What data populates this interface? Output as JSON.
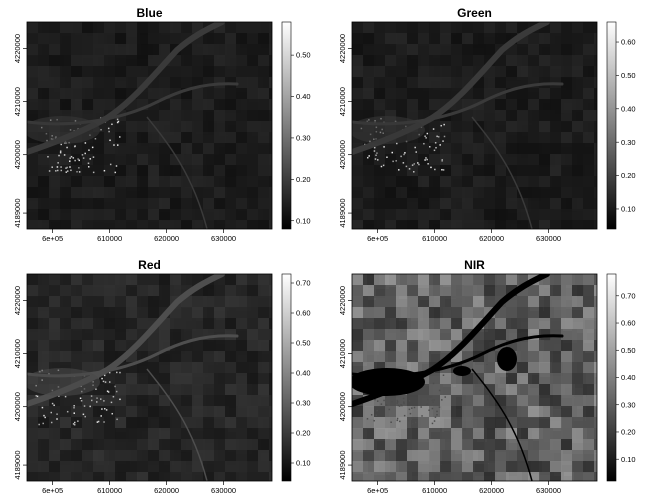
{
  "chart_data": [
    {
      "type": "heatmap",
      "title": "Blue",
      "xlabel": "",
      "ylabel": "",
      "x_ticks": [
        "6e+05",
        "610000",
        "620000",
        "630000"
      ],
      "x_tick_values": [
        600000,
        610000,
        620000,
        630000
      ],
      "xlim": [
        595500,
        638500
      ],
      "y_ticks": [
        "4189000",
        "4200000",
        "4210000",
        "4220000"
      ],
      "y_tick_values": [
        4189000,
        4200000,
        4210000,
        4220000
      ],
      "ylim": [
        4186000,
        4225000
      ],
      "colorbar_ticks": [
        "0.10",
        "0.20",
        "0.30",
        "0.40",
        "0.50"
      ],
      "colorbar_tick_values": [
        0.1,
        0.2,
        0.3,
        0.4,
        0.5
      ],
      "value_range": [
        0.08,
        0.58
      ],
      "colormap": "grayscale",
      "mean_level": 0.12,
      "legend": "right"
    },
    {
      "type": "heatmap",
      "title": "Green",
      "xlabel": "",
      "ylabel": "",
      "x_ticks": [
        "6e+05",
        "610000",
        "620000",
        "630000"
      ],
      "x_tick_values": [
        600000,
        610000,
        620000,
        630000
      ],
      "xlim": [
        595500,
        638500
      ],
      "y_ticks": [
        "4189000",
        "4200000",
        "4210000",
        "4220000"
      ],
      "y_tick_values": [
        4189000,
        4200000,
        4210000,
        4220000
      ],
      "ylim": [
        4186000,
        4225000
      ],
      "colorbar_ticks": [
        "0.10",
        "0.20",
        "0.30",
        "0.40",
        "0.50",
        "0.60"
      ],
      "colorbar_tick_values": [
        0.1,
        0.2,
        0.3,
        0.4,
        0.5,
        0.6
      ],
      "value_range": [
        0.04,
        0.66
      ],
      "colormap": "grayscale",
      "mean_level": 0.12,
      "legend": "right"
    },
    {
      "type": "heatmap",
      "title": "Red",
      "xlabel": "",
      "ylabel": "",
      "x_ticks": [
        "6e+05",
        "610000",
        "620000",
        "630000"
      ],
      "x_tick_values": [
        600000,
        610000,
        620000,
        630000
      ],
      "xlim": [
        595500,
        638500
      ],
      "y_ticks": [
        "4189000",
        "4200000",
        "4210000",
        "4220000"
      ],
      "y_tick_values": [
        4189000,
        4200000,
        4210000,
        4220000
      ],
      "ylim": [
        4186000,
        4225000
      ],
      "colorbar_ticks": [
        "0.10",
        "0.20",
        "0.30",
        "0.40",
        "0.50",
        "0.60",
        "0.70"
      ],
      "colorbar_tick_values": [
        0.1,
        0.2,
        0.3,
        0.4,
        0.5,
        0.6,
        0.7
      ],
      "value_range": [
        0.04,
        0.73
      ],
      "colormap": "grayscale",
      "mean_level": 0.16,
      "legend": "right"
    },
    {
      "type": "heatmap",
      "title": "NIR",
      "xlabel": "",
      "ylabel": "",
      "x_ticks": [
        "6e+05",
        "610000",
        "620000",
        "630000"
      ],
      "x_tick_values": [
        600000,
        610000,
        620000,
        630000
      ],
      "xlim": [
        595500,
        638500
      ],
      "y_ticks": [
        "4189000",
        "4200000",
        "4210000",
        "4220000"
      ],
      "y_tick_values": [
        4189000,
        4200000,
        4210000,
        4220000
      ],
      "ylim": [
        4186000,
        4225000
      ],
      "colorbar_ticks": [
        "0.10",
        "0.20",
        "0.30",
        "0.40",
        "0.50",
        "0.60",
        "0.70"
      ],
      "colorbar_tick_values": [
        0.1,
        0.2,
        0.3,
        0.4,
        0.5,
        0.6,
        0.7
      ],
      "value_range": [
        0.02,
        0.78
      ],
      "colormap": "grayscale",
      "mean_level": 0.32,
      "legend": "right"
    }
  ]
}
